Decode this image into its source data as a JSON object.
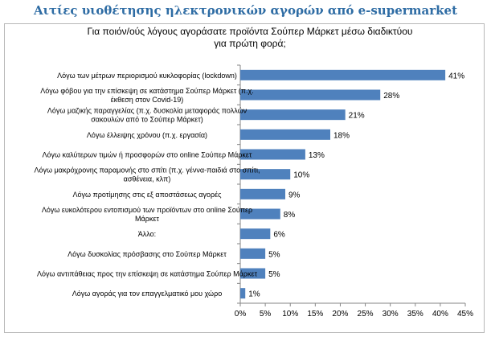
{
  "heading": "Αιτίες υιοθέτησης ηλεκτρονικών αγορών από e-supermarket",
  "chart_data": {
    "type": "bar",
    "orientation": "horizontal",
    "title": "Για ποιόν/ούς  λόγους αγοράσατε προϊόντα  Σούπερ Μάρκετ μέσω  διαδικτύου\nγια πρώτη  φορά;",
    "xlim": [
      0,
      45
    ],
    "x_ticks": [
      0,
      5,
      10,
      15,
      20,
      25,
      30,
      35,
      40,
      45
    ],
    "x_tick_labels": [
      "0%",
      "5%",
      "10%",
      "15%",
      "20%",
      "25%",
      "30%",
      "35%",
      "40%",
      "45%"
    ],
    "grid": false,
    "legend": "none",
    "bar_color": "#4f81bd",
    "categories": [
      [
        "Λόγω των μέτρων περιορισμού κυκλοφορίας (lockdown)"
      ],
      [
        "Λόγω φόβου για την επίσκεψη σε κατάστημα Σούπερ Μάρκετ (π.χ.",
        "έκθεση στον Covid-19)"
      ],
      [
        "Λόγω μαζικής παραγγελίας (π.χ. δυσκολία μεταφοράς πολλών",
        "σακουλών από το Σούπερ Μάρκετ)"
      ],
      [
        "Λόγω έλλειψης χρόνου (π.χ. εργασία)"
      ],
      [
        "Λόγω καλύτερων τιμών ή προσφορών στο online Σούπερ Μάρκετ"
      ],
      [
        "Λόγω μακρόχρονης παραμονής στο σπίτι (π.χ. γέννα-παιδιά στο σπίτι,",
        "ασθένεια, κλπ)"
      ],
      [
        "Λόγω προτίμησης στις εξ αποστάσεως αγορές"
      ],
      [
        "Λόγω ευκολότερου εντοπισμού των προϊόντων στο online Σούπερ",
        "Μάρκετ"
      ],
      [
        "Άλλο:"
      ],
      [
        "Λόγω δυσκολίας πρόσβασης στο Σούπερ Μάρκετ"
      ],
      [
        "Λόγω αντιπάθειας προς την επίσκεψη σε κατάστημα Σούπερ Μάρκετ"
      ],
      [
        "Λόγω αγοράς για τον επαγγελματικό μου χώρο"
      ]
    ],
    "values": [
      41,
      28,
      21,
      18,
      13,
      10,
      9,
      8,
      6,
      5,
      5,
      1
    ],
    "value_labels": [
      "41%",
      "28%",
      "21%",
      "18%",
      "13%",
      "10%",
      "9%",
      "8%",
      "6%",
      "5%",
      "5%",
      "1%"
    ]
  }
}
